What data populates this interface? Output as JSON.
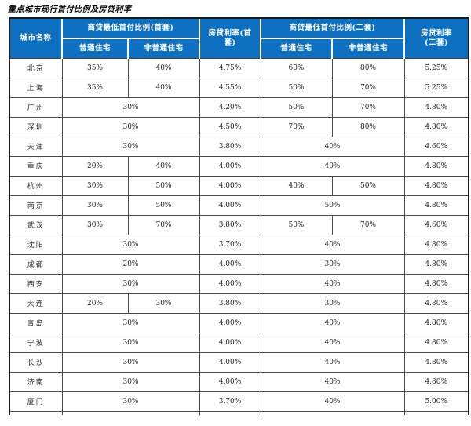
{
  "title": "重点城市现行首付比例及房贷利率",
  "colors": {
    "header_bg": "#0e70c0",
    "header_text": "#ffffff",
    "grid_border": "#4a4a4a",
    "outer_border": "#1a1a1a",
    "body_text": "#262626"
  },
  "table": {
    "header": {
      "city": "城市名称",
      "first_section": "商贷最低首付比例(首套)",
      "first_rate": "房贷利率(首\n套)",
      "second_section": "商贷最低首付比例(二套)",
      "second_rate": "房贷利率\n(二套)",
      "ordinary": "普通住宅",
      "non_ordinary": "非普通住宅"
    },
    "rows": [
      {
        "city": "北京",
        "first": [
          "35%",
          "40%"
        ],
        "first_rate": "4.75%",
        "second": [
          "60%",
          "80%"
        ],
        "second_rate": "5.25%"
      },
      {
        "city": "上海",
        "first": [
          "35%",
          "40%"
        ],
        "first_rate": "4.55%",
        "second": [
          "50%",
          "70%"
        ],
        "second_rate": "5.25%"
      },
      {
        "city": "广州",
        "first": [
          "30%"
        ],
        "first_rate": "4.20%",
        "second": [
          "50%",
          "70%"
        ],
        "second_rate": "4.80%"
      },
      {
        "city": "深圳",
        "first": [
          "30%"
        ],
        "first_rate": "4.50%",
        "second": [
          "70%",
          "80%"
        ],
        "second_rate": "4.80%"
      },
      {
        "city": "天津",
        "first": [
          "30%"
        ],
        "first_rate": "3.80%",
        "second": [
          "40%"
        ],
        "second_rate": "4.60%"
      },
      {
        "city": "重庆",
        "first": [
          "20%",
          "40%"
        ],
        "first_rate": "4.00%",
        "second": [
          "40%"
        ],
        "second_rate": "4.80%"
      },
      {
        "city": "杭州",
        "first": [
          "30%",
          "50%"
        ],
        "first_rate": "4.00%",
        "second": [
          "40%",
          "50%"
        ],
        "second_rate": "4.80%"
      },
      {
        "city": "南京",
        "first": [
          "30%",
          "50%"
        ],
        "first_rate": "4.00%",
        "second": [
          "50%"
        ],
        "second_rate": "4.80%"
      },
      {
        "city": "武汉",
        "first": [
          "30%",
          "70%"
        ],
        "first_rate": "3.80%",
        "second": [
          "50%",
          "70%"
        ],
        "second_rate": "4.60%"
      },
      {
        "city": "沈阳",
        "first": [
          "30%"
        ],
        "first_rate": "3.70%",
        "second": [
          "40%"
        ],
        "second_rate": "4.80%"
      },
      {
        "city": "成都",
        "first": [
          "20%"
        ],
        "first_rate": "4.00%",
        "second": [
          "30%"
        ],
        "second_rate": "4.80%"
      },
      {
        "city": "西安",
        "first": [
          "30%"
        ],
        "first_rate": "4.00%",
        "second": [
          "40%"
        ],
        "second_rate": "4.80%"
      },
      {
        "city": "大连",
        "first": [
          "20%",
          "30%"
        ],
        "first_rate": "3.80%",
        "second": [
          "30%"
        ],
        "second_rate": "4.80%"
      },
      {
        "city": "青岛",
        "first": [
          "30%"
        ],
        "first_rate": "4.00%",
        "second": [
          "40%"
        ],
        "second_rate": "4.80%"
      },
      {
        "city": "宁波",
        "first": [
          "30%"
        ],
        "first_rate": "4.00%",
        "second": [
          "40%"
        ],
        "second_rate": "4.80%"
      },
      {
        "city": "长沙",
        "first": [
          "30%"
        ],
        "first_rate": "4.00%",
        "second": [
          "40%"
        ],
        "second_rate": "4.80%"
      },
      {
        "city": "济南",
        "first": [
          "30%"
        ],
        "first_rate": "4.00%",
        "second": [
          "40%"
        ],
        "second_rate": "4.80%"
      },
      {
        "city": "厦门",
        "first": [
          "30%"
        ],
        "first_rate": "3.70%",
        "second": [
          "40%"
        ],
        "second_rate": "5.00%"
      }
    ]
  }
}
